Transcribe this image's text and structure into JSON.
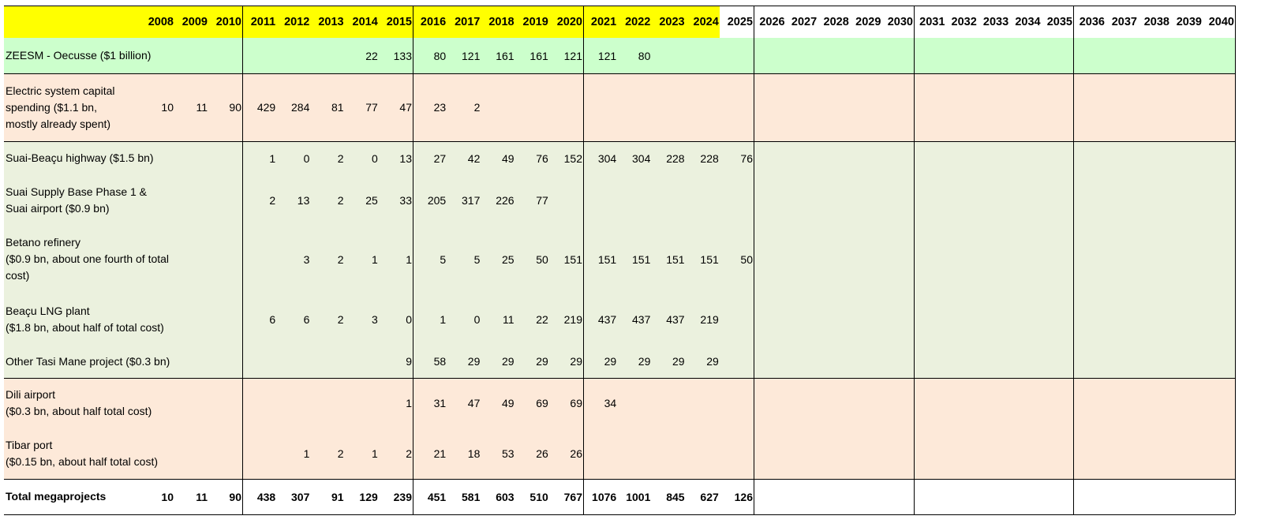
{
  "table": {
    "years": [
      2008,
      2009,
      2010,
      2011,
      2012,
      2013,
      2014,
      2015,
      2016,
      2017,
      2018,
      2019,
      2020,
      2021,
      2022,
      2023,
      2024,
      2025,
      2026,
      2027,
      2028,
      2029,
      2030,
      2031,
      2032,
      2033,
      2034,
      2035,
      2036,
      2037,
      2038,
      2039,
      2040
    ],
    "rows": [
      {
        "label": "ZEESM - Oecusse ($1 billion)",
        "values": [
          null,
          null,
          null,
          null,
          null,
          null,
          22,
          133,
          80,
          121,
          161,
          161,
          121,
          121,
          80,
          null,
          null,
          null,
          null,
          null,
          null,
          null,
          null,
          null,
          null,
          null,
          null,
          null,
          null,
          null,
          null,
          null,
          null
        ]
      },
      {
        "label": "Electric system  capital\nspending ($1.1 bn,\nmostly already spent)",
        "values": [
          10,
          11,
          90,
          429,
          284,
          81,
          77,
          47,
          23,
          2,
          null,
          null,
          null,
          null,
          null,
          null,
          null,
          null,
          null,
          null,
          null,
          null,
          null,
          null,
          null,
          null,
          null,
          null,
          null,
          null,
          null,
          null,
          null
        ]
      },
      {
        "label": "Suai-Beaçu highway ($1.5 bn)",
        "values": [
          null,
          null,
          null,
          1,
          0,
          2,
          0,
          13,
          27,
          42,
          49,
          76,
          152,
          304,
          304,
          228,
          228,
          76,
          null,
          null,
          null,
          null,
          null,
          null,
          null,
          null,
          null,
          null,
          null,
          null,
          null,
          null,
          null
        ]
      },
      {
        "label": "Suai Supply Base Phase 1 &\nSuai airport ($0.9 bn)",
        "values": [
          null,
          null,
          null,
          2,
          13,
          2,
          25,
          33,
          205,
          317,
          226,
          77,
          null,
          null,
          null,
          null,
          null,
          null,
          null,
          null,
          null,
          null,
          null,
          null,
          null,
          null,
          null,
          null,
          null,
          null,
          null,
          null,
          null
        ]
      },
      {
        "label": "Betano refinery\n($0.9 bn, about one fourth of total\ncost)",
        "values": [
          null,
          null,
          null,
          null,
          3,
          2,
          1,
          1,
          5,
          5,
          25,
          50,
          151,
          151,
          151,
          151,
          151,
          50,
          null,
          null,
          null,
          null,
          null,
          null,
          null,
          null,
          null,
          null,
          null,
          null,
          null,
          null,
          null
        ]
      },
      {
        "label": "Beaçu LNG plant\n($1.8 bn, about half of total cost)",
        "values": [
          null,
          null,
          null,
          6,
          6,
          2,
          3,
          0,
          1,
          0,
          11,
          22,
          219,
          437,
          437,
          437,
          219,
          null,
          null,
          null,
          null,
          null,
          null,
          null,
          null,
          null,
          null,
          null,
          null,
          null,
          null,
          null,
          null
        ]
      },
      {
        "label": "Other Tasi Mane project ($0.3 bn)",
        "values": [
          null,
          null,
          null,
          null,
          null,
          null,
          null,
          9,
          58,
          29,
          29,
          29,
          29,
          29,
          29,
          29,
          29,
          null,
          null,
          null,
          null,
          null,
          null,
          null,
          null,
          null,
          null,
          null,
          null,
          null,
          null,
          null,
          null
        ]
      },
      {
        "label": "Dili airport\n($0.3 bn, about half total cost)",
        "values": [
          null,
          null,
          null,
          null,
          null,
          null,
          null,
          1,
          31,
          47,
          49,
          69,
          69,
          34,
          null,
          null,
          null,
          null,
          null,
          null,
          null,
          null,
          null,
          null,
          null,
          null,
          null,
          null,
          null,
          null,
          null,
          null,
          null
        ]
      },
      {
        "label": "Tibar port\n($0.15 bn, about half total cost)",
        "values": [
          null,
          null,
          null,
          null,
          1,
          2,
          1,
          2,
          21,
          18,
          53,
          26,
          26,
          null,
          null,
          null,
          null,
          null,
          null,
          null,
          null,
          null,
          null,
          null,
          null,
          null,
          null,
          null,
          null,
          null,
          null,
          null,
          null
        ]
      },
      {
        "label": "Total megaprojects",
        "values": [
          10,
          11,
          90,
          438,
          307,
          91,
          129,
          239,
          451,
          581,
          603,
          510,
          767,
          1076,
          1001,
          845,
          627,
          126,
          null,
          null,
          null,
          null,
          null,
          null,
          null,
          null,
          null,
          null,
          null,
          null,
          null,
          null,
          null
        ]
      }
    ]
  }
}
